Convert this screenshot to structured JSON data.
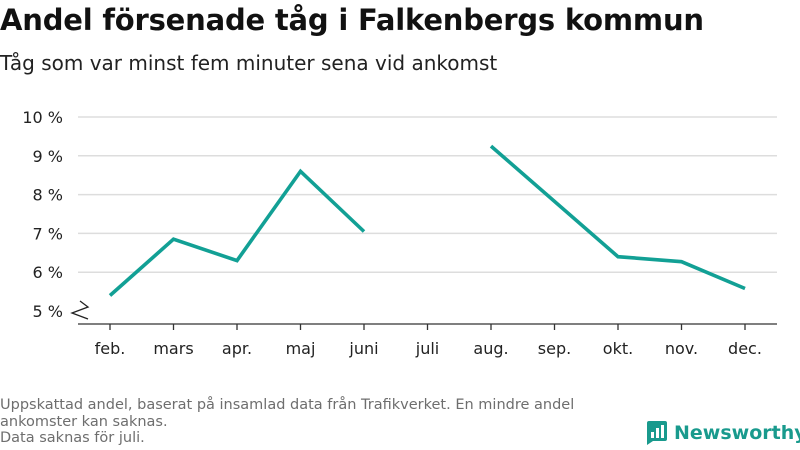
{
  "title": "Andel försenade tåg i Falkenbergs kommun",
  "subtitle": "Tåg som var minst fem minuter sena vid ankomst",
  "footer": {
    "note_line1": "Uppskattad andel, baserat på insamlad data från Trafikverket. En mindre andel",
    "note_line2": "ankomster kan saknas.",
    "note_line3": "Data saknas för juli."
  },
  "brand": {
    "name": "Newsworthy",
    "color": "#199a8d"
  },
  "colors": {
    "line": "#12a095",
    "grid": "#dddddd",
    "axis": "#333333"
  },
  "chart_data": {
    "type": "line",
    "categories": [
      "feb.",
      "mars",
      "apr.",
      "maj",
      "juni",
      "juli",
      "aug.",
      "sep.",
      "okt.",
      "nov.",
      "dec."
    ],
    "series": [
      {
        "values": [
          5.4,
          6.85,
          6.3,
          8.6,
          7.05,
          null,
          9.25,
          null,
          6.4,
          6.27,
          5.58
        ]
      }
    ],
    "ylim": [
      5,
      10
    ],
    "yticks": [
      5,
      6,
      7,
      8,
      9,
      10
    ],
    "ytick_labels": [
      "5 %",
      "6 %",
      "7 %",
      "8 %",
      "9 %",
      "10 %"
    ],
    "y_axis_break": true,
    "grid": true
  }
}
